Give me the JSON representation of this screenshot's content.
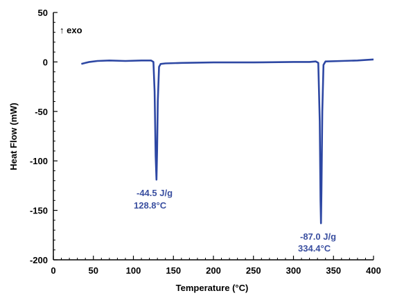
{
  "chart_data": {
    "type": "line",
    "xlabel": "Temperature (°C)",
    "ylabel": "Heat Flow (mW)",
    "xlim": [
      0,
      400
    ],
    "ylim": [
      -200,
      50
    ],
    "x_ticks": [
      "0",
      "50",
      "100",
      "150",
      "200",
      "250",
      "300",
      "350",
      "400"
    ],
    "y_ticks": [
      "50",
      "0",
      "-50",
      "-100",
      "-150",
      "-200"
    ],
    "grid": false,
    "color": "#2d47a3",
    "exo_note": "↑ exo",
    "series": [
      {
        "x": [
          35,
          40,
          45,
          55,
          70,
          90,
          110,
          122,
          125,
          126.5,
          127.8,
          128.8,
          129.6,
          130.5,
          132,
          134,
          140,
          160,
          200,
          250,
          300,
          320,
          328,
          331,
          332.8,
          333.8,
          334.4,
          335,
          336,
          337.5,
          340,
          360,
          380,
          400
        ],
        "y": [
          -2,
          -1,
          0,
          1,
          1.5,
          1,
          1.5,
          1.5,
          0,
          -30,
          -95,
          -119,
          -90,
          -40,
          -5,
          -2,
          -1.5,
          -1,
          -0.5,
          -0.5,
          0,
          0,
          0.5,
          -1,
          -60,
          -140,
          -163,
          -130,
          -50,
          -3,
          0.5,
          1,
          1.5,
          2.5
        ]
      }
    ],
    "annotations": [
      {
        "line1": "-44.5 J/g",
        "line2": "128.8°C",
        "x": 128.8,
        "y": -119
      },
      {
        "line1": "-87.0 J/g",
        "line2": "334.4°C",
        "x": 334.4,
        "y": -163
      }
    ]
  }
}
